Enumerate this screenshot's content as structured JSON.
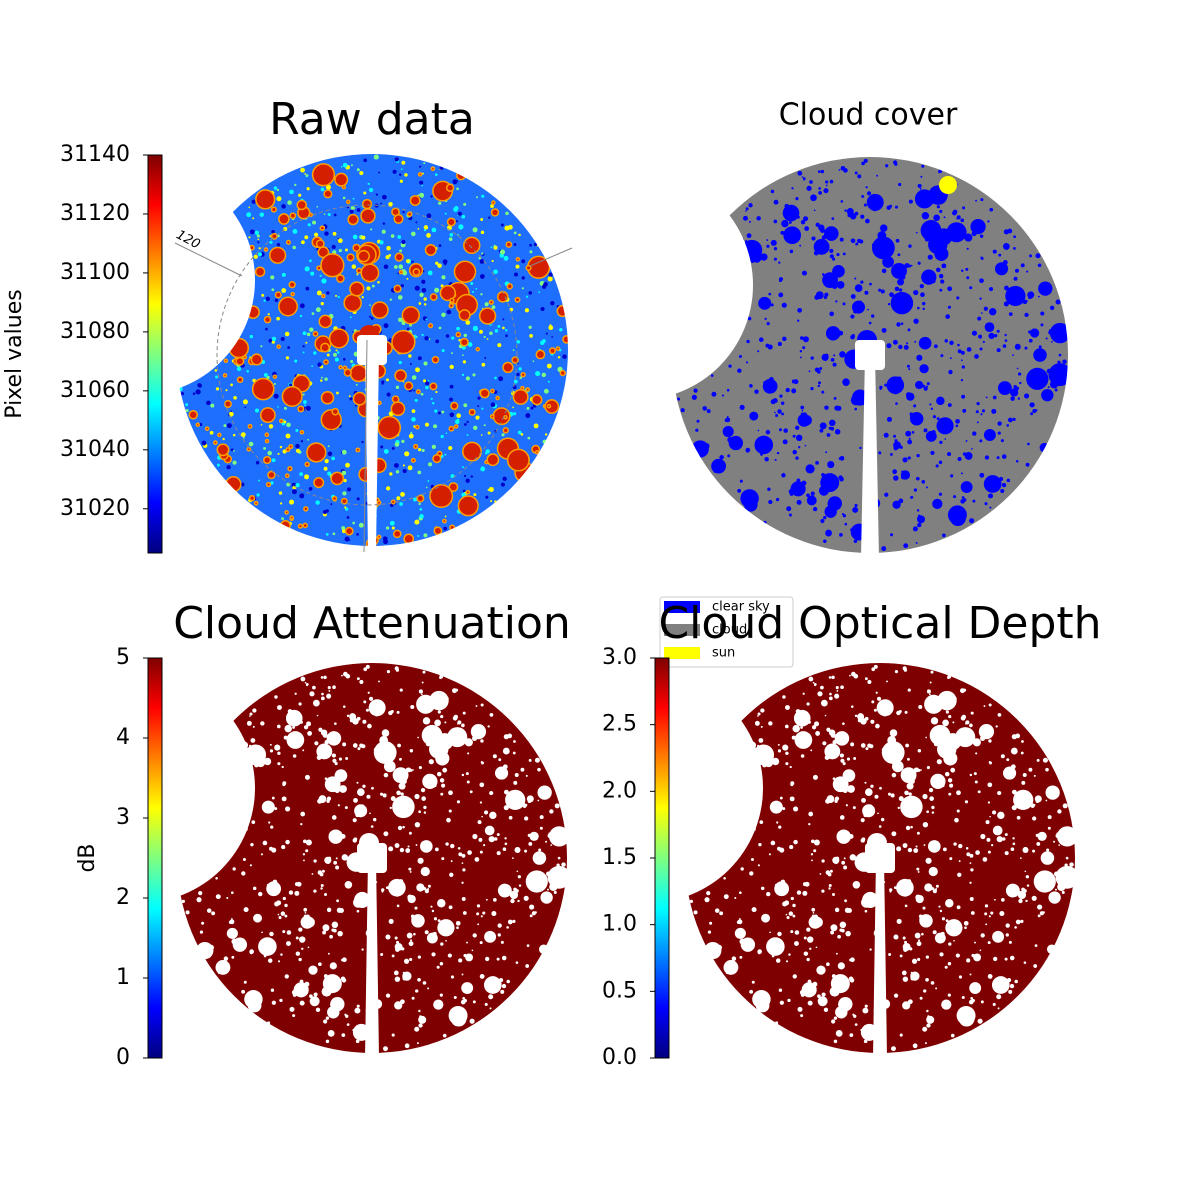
{
  "chart_data": [
    {
      "type": "image",
      "title": "Raw data",
      "colormap": "jet",
      "colorbar": {
        "label": "Pixel values",
        "lim": [
          31005,
          31140
        ],
        "ticks": [
          31020,
          31040,
          31060,
          31080,
          31100,
          31120,
          31140
        ]
      },
      "annotations": [
        "120"
      ]
    },
    {
      "type": "image",
      "title": "Cloud cover",
      "legend": "lower left",
      "series": [
        {
          "name": "clear sky",
          "color": "#0000ff"
        },
        {
          "name": "cloud",
          "color": "#808080"
        },
        {
          "name": "sun",
          "color": "#ffff00"
        }
      ]
    },
    {
      "type": "image",
      "title": "Cloud Attenuation",
      "colormap": "jet",
      "colorbar": {
        "label": "dB",
        "lim": [
          0,
          5
        ],
        "ticks": [
          0,
          1,
          2,
          3,
          4,
          5
        ]
      }
    },
    {
      "type": "image",
      "title": "Cloud Optical Depth",
      "colormap": "jet",
      "colorbar": {
        "lim": [
          0,
          3
        ],
        "ticks": [
          {
            "value": 0,
            "label": "0.0"
          },
          0.5,
          {
            "value": 1,
            "label": "1.0"
          },
          1.5,
          {
            "value": 2,
            "label": "2.0"
          },
          2.5,
          {
            "value": 3,
            "label": "3.0"
          }
        ]
      }
    }
  ]
}
